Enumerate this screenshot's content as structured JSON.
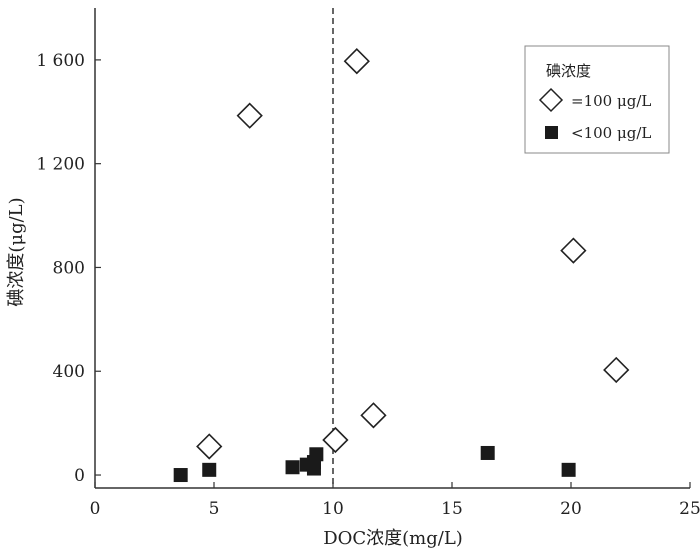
{
  "chart_data": {
    "type": "scatter",
    "xlabel": "DOC浓度(mg/L)",
    "ylabel": "碘浓度(μg/L)",
    "xlim": [
      0,
      25
    ],
    "ylim": [
      -50,
      1800
    ],
    "x_ticks": [
      0,
      5,
      10,
      15,
      20,
      25
    ],
    "x_tick_labels": [
      "0",
      "5",
      "10",
      "15",
      "20",
      "25"
    ],
    "y_ticks": [
      0,
      400,
      800,
      1200,
      1600
    ],
    "y_tick_labels": [
      "0",
      "400",
      "800",
      "1 200",
      "1 600"
    ],
    "grid": false,
    "reference_line": {
      "x": 10,
      "style": "dashed",
      "color": "#333333"
    },
    "legend": {
      "title": "碘浓度",
      "placement": "top-right",
      "entries": [
        {
          "label": "=100 μg/L",
          "marker": "open-diamond"
        },
        {
          "label": "<100 μg/L",
          "marker": "filled-square"
        }
      ]
    },
    "series": [
      {
        "name": "=100 μg/L",
        "marker": "open-diamond",
        "color": "#222222",
        "points": [
          {
            "x": 4.8,
            "y": 110
          },
          {
            "x": 6.5,
            "y": 1385
          },
          {
            "x": 10.1,
            "y": 135
          },
          {
            "x": 11.0,
            "y": 1595
          },
          {
            "x": 11.7,
            "y": 230
          },
          {
            "x": 20.1,
            "y": 865
          },
          {
            "x": 21.9,
            "y": 405
          }
        ]
      },
      {
        "name": "<100 μg/L",
        "marker": "filled-square",
        "color": "#1a1a1a",
        "points": [
          {
            "x": 3.6,
            "y": 0
          },
          {
            "x": 4.8,
            "y": 20
          },
          {
            "x": 8.3,
            "y": 30
          },
          {
            "x": 8.9,
            "y": 40
          },
          {
            "x": 9.2,
            "y": 25
          },
          {
            "x": 9.2,
            "y": 50
          },
          {
            "x": 9.3,
            "y": 80
          },
          {
            "x": 16.5,
            "y": 85
          },
          {
            "x": 19.9,
            "y": 20
          }
        ]
      }
    ]
  }
}
